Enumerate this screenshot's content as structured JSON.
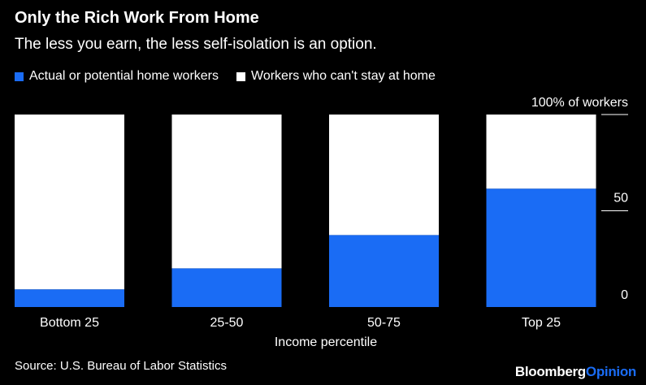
{
  "header": {
    "title": "Only the Rich Work From Home",
    "subtitle": "The less you earn, the less self-isolation is an option."
  },
  "legend": {
    "series_a": "Actual or potential home workers",
    "series_b": "Workers who can't stay at home"
  },
  "footer": {
    "source": "Source: U.S. Bureau of Labor Statistics",
    "brand_main": "Bloomberg",
    "brand_accent": "Opinion"
  },
  "colors": {
    "home": "#1a6cf5",
    "cant_stay": "#ffffff",
    "background": "#000000",
    "grid": "#ffffff"
  },
  "chart_data": {
    "type": "bar",
    "stacked": true,
    "categories": [
      "Bottom 25",
      "25-50",
      "50-75",
      "Top 25"
    ],
    "series": [
      {
        "name": "Actual or potential home workers",
        "values": [
          9.2,
          20.1,
          37.4,
          61.5
        ]
      },
      {
        "name": "Workers who can't stay at home",
        "values": [
          90.8,
          79.9,
          62.6,
          38.5
        ]
      }
    ],
    "xlabel": "Income percentile",
    "ylim": [
      0,
      100
    ],
    "yticks": [
      {
        "value": 0,
        "label": "0"
      },
      {
        "value": 50,
        "label": "50"
      },
      {
        "value": 100,
        "label": "100% of workers"
      }
    ],
    "legend_position": "top-left",
    "y_axis_side": "right"
  }
}
